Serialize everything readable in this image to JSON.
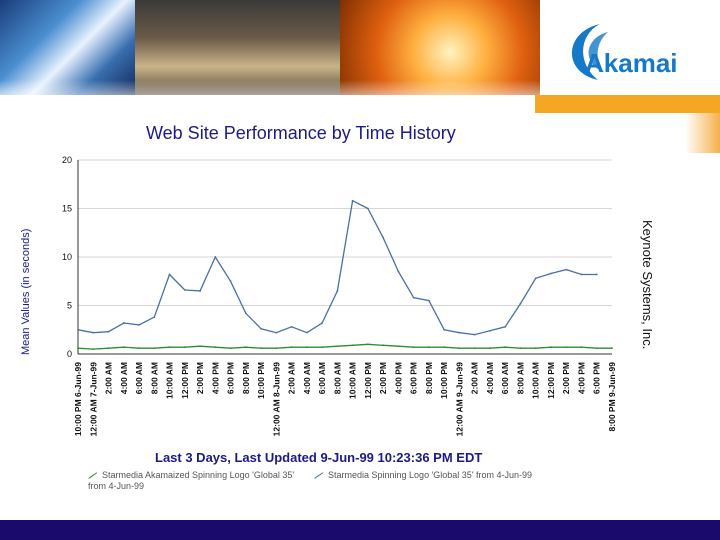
{
  "brand": {
    "logo_text": "Akamai"
  },
  "chart_data": {
    "type": "line",
    "title": "Web Site Performance by Time History",
    "ylabel": "Mean Values (in seconds)",
    "xlabel": "",
    "ylim": [
      0,
      20
    ],
    "yticks": [
      0,
      5,
      10,
      15,
      20
    ],
    "grid": true,
    "subtitle": "Last 3 Days, Last Updated 9-Jun-99 10:23:36 PM EDT",
    "credit": "Keynote Systems, Inc.",
    "categories": [
      "10:00 PM 6-Jun-99",
      "12:00 AM 7-Jun-99",
      "2:00 AM",
      "4:00 AM",
      "6:00 AM",
      "8:00 AM",
      "10:00 AM",
      "12:00 PM",
      "2:00 PM",
      "4:00 PM",
      "6:00 PM",
      "8:00 PM",
      "10:00 PM",
      "12:00 AM 8-Jun-99",
      "2:00 AM",
      "4:00 AM",
      "6:00 AM",
      "8:00 AM",
      "10:00 AM",
      "12:00 PM",
      "2:00 PM",
      "4:00 PM",
      "6:00 PM",
      "8:00 PM",
      "10:00 PM",
      "12:00 AM 9-Jun-99",
      "2:00 AM",
      "4:00 AM",
      "6:00 AM",
      "8:00 AM",
      "10:00 AM",
      "12:00 PM",
      "2:00 PM",
      "4:00 PM",
      "6:00 PM",
      "8:00 PM 9-Jun-99"
    ],
    "series": [
      {
        "name": "Starmedia Akamaized Spinning Logo 'Global 35' from 4-Jun-99",
        "color": "#2e8b2e",
        "values": [
          0.6,
          0.5,
          0.6,
          0.7,
          0.6,
          0.6,
          0.7,
          0.7,
          0.8,
          0.7,
          0.6,
          0.7,
          0.6,
          0.6,
          0.7,
          0.7,
          0.7,
          0.8,
          0.9,
          1.0,
          0.9,
          0.8,
          0.7,
          0.7,
          0.7,
          0.6,
          0.6,
          0.6,
          0.7,
          0.6,
          0.6,
          0.7,
          0.7,
          0.7,
          0.6,
          0.6
        ]
      },
      {
        "name": "Starmedia Spinning Logo 'Global 35' from 4-Jun-99",
        "color": "#4a6fa8",
        "values": [
          2.5,
          2.2,
          2.3,
          3.2,
          3.0,
          3.8,
          8.2,
          6.6,
          6.5,
          10.0,
          7.5,
          4.2,
          2.6,
          2.2,
          2.8,
          2.2,
          3.2,
          6.5,
          15.8,
          15.0,
          12.0,
          8.5,
          5.8,
          5.5,
          2.5,
          2.2,
          2.0,
          2.4,
          2.8,
          5.2,
          7.8,
          8.3,
          8.7,
          8.2,
          8.2,
          null
        ]
      }
    ]
  }
}
